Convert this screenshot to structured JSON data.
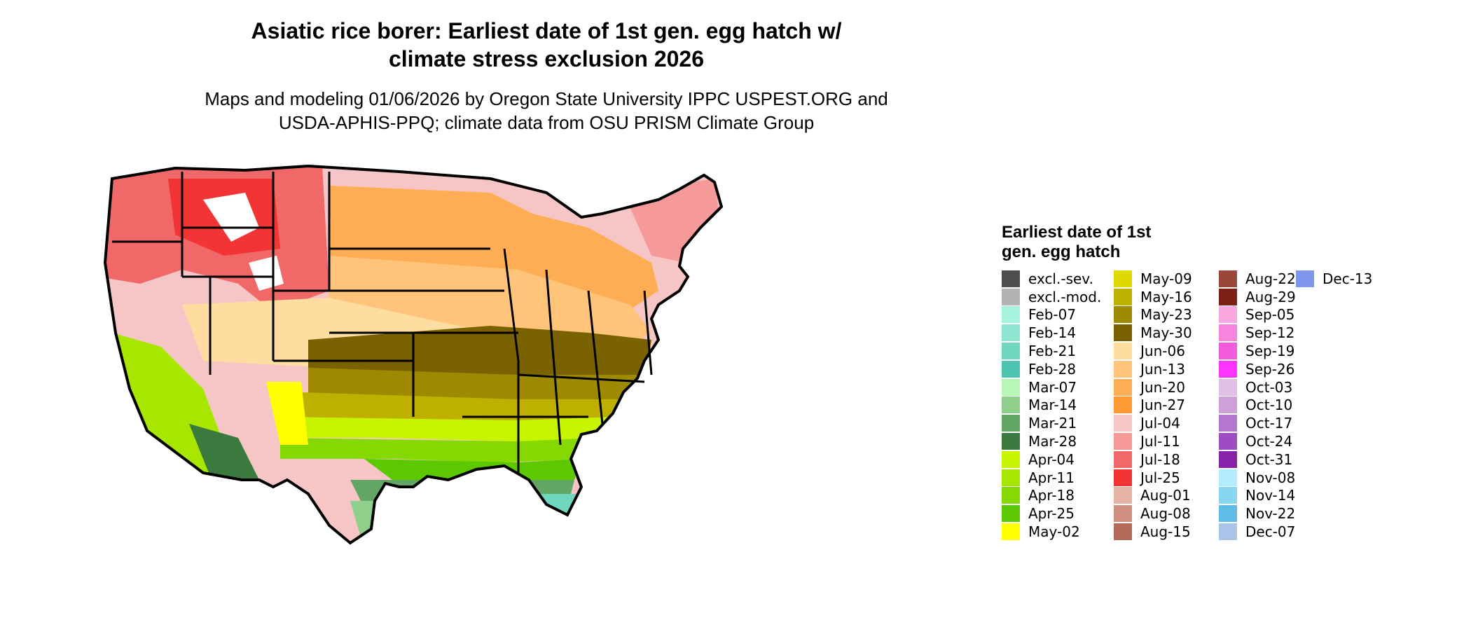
{
  "title_line1": "Asiatic rice borer: Earliest date of 1st gen. egg hatch w/",
  "title_line2": "climate stress exclusion 2026",
  "subtitle_line1": "Maps and modeling 01/06/2026 by Oregon State University IPPC USPEST.ORG and",
  "subtitle_line2": "USDA-APHIS-PPQ; climate data from OSU PRISM Climate Group",
  "legend": {
    "title": "Earliest date of 1st gen. egg hatch",
    "columns": [
      [
        {
          "label": "excl.-sev.",
          "color": "#4d4d4d"
        },
        {
          "label": "excl.-mod.",
          "color": "#b3b3b3"
        },
        {
          "label": "Feb-07",
          "color": "#a6f2dc"
        },
        {
          "label": "Feb-14",
          "color": "#8de6cf"
        },
        {
          "label": "Feb-21",
          "color": "#6fd6c0"
        },
        {
          "label": "Feb-28",
          "color": "#4fc4b0"
        },
        {
          "label": "Mar-07",
          "color": "#b7f7b5"
        },
        {
          "label": "Mar-14",
          "color": "#8fcf8c"
        },
        {
          "label": "Mar-21",
          "color": "#63a663"
        },
        {
          "label": "Mar-28",
          "color": "#3b7a3e"
        },
        {
          "label": "Apr-04",
          "color": "#c7f500"
        },
        {
          "label": "Apr-11",
          "color": "#a8e600"
        },
        {
          "label": "Apr-18",
          "color": "#86d900"
        },
        {
          "label": "Apr-25",
          "color": "#5cc800"
        },
        {
          "label": "May-02",
          "color": "#ffff00"
        }
      ],
      [
        {
          "label": "May-09",
          "color": "#dfd900"
        },
        {
          "label": "May-16",
          "color": "#bfb000"
        },
        {
          "label": "May-23",
          "color": "#9e8a00"
        },
        {
          "label": "May-30",
          "color": "#7a6200"
        },
        {
          "label": "Jun-06",
          "color": "#ffdca0"
        },
        {
          "label": "Jun-13",
          "color": "#ffc47a"
        },
        {
          "label": "Jun-20",
          "color": "#ffad55"
        },
        {
          "label": "Jun-27",
          "color": "#ff9933"
        },
        {
          "label": "Jul-04",
          "color": "#f6c6c6"
        },
        {
          "label": "Jul-11",
          "color": "#f59999"
        },
        {
          "label": "Jul-18",
          "color": "#f06868"
        },
        {
          "label": "Jul-25",
          "color": "#f23434"
        },
        {
          "label": "Aug-01",
          "color": "#e6b3a6"
        },
        {
          "label": "Aug-08",
          "color": "#cf8f80"
        },
        {
          "label": "Aug-15",
          "color": "#b3695a"
        }
      ],
      [
        {
          "label": "Aug-22",
          "color": "#99473a"
        },
        {
          "label": "Aug-29",
          "color": "#7d1f12"
        },
        {
          "label": "Sep-05",
          "color": "#f9a8e0"
        },
        {
          "label": "Sep-12",
          "color": "#f784dd"
        },
        {
          "label": "Sep-19",
          "color": "#f25cdc"
        },
        {
          "label": "Sep-26",
          "color": "#ff33ff"
        },
        {
          "label": "Oct-03",
          "color": "#e0bfe6"
        },
        {
          "label": "Oct-10",
          "color": "#cf9fdc"
        },
        {
          "label": "Oct-17",
          "color": "#b577ce"
        },
        {
          "label": "Oct-24",
          "color": "#9d4dc0"
        },
        {
          "label": "Oct-31",
          "color": "#8822aa"
        },
        {
          "label": "Nov-08",
          "color": "#b3ecff"
        },
        {
          "label": "Nov-14",
          "color": "#88d6f2"
        },
        {
          "label": "Nov-22",
          "color": "#5ebde6"
        },
        {
          "label": "Dec-07",
          "color": "#a8c4ea"
        }
      ],
      [
        {
          "label": "Dec-13",
          "color": "#7f97eb"
        }
      ]
    ]
  }
}
